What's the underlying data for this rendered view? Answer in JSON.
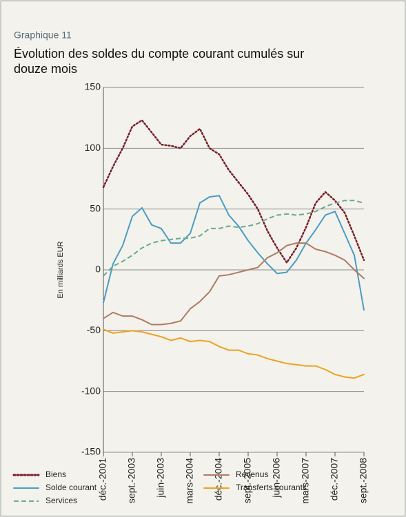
{
  "chart_data": {
    "type": "line",
    "kicker": "Graphique 11",
    "title": "Évolution des soldes du compte courant cumulés sur douze mois",
    "y_label": "En milliards EUR",
    "categories": [
      "déc.-2001",
      null,
      null,
      "sept.-2003",
      null,
      null,
      "juin-2003",
      null,
      null,
      "mars-2004",
      null,
      null,
      "déc.-2004",
      null,
      null,
      "sept.-2005",
      null,
      null,
      "juin-2006",
      null,
      null,
      "mars-2007",
      null,
      null,
      "déc.-2007",
      null,
      null,
      "sept.-2008"
    ],
    "series": [
      {
        "name": "Biens",
        "color": "#7b1e2a",
        "dash": "dotted",
        "values": [
          68,
          85,
          100,
          118,
          123,
          113,
          103,
          102,
          100,
          110,
          116,
          100,
          95,
          82,
          72,
          62,
          50,
          32,
          18,
          6,
          18,
          35,
          55,
          64,
          57,
          47,
          28,
          8
        ]
      },
      {
        "name": "Solde courant",
        "color": "#4a9cc4",
        "dash": "solid",
        "values": [
          -27,
          5,
          20,
          44,
          51,
          37,
          34,
          22,
          22,
          30,
          55,
          60,
          61,
          45,
          36,
          24,
          14,
          5,
          -3,
          -2,
          8,
          22,
          33,
          45,
          48,
          30,
          12,
          -33
        ]
      },
      {
        "name": "Services",
        "color": "#6aaa88",
        "dash": "dashed",
        "values": [
          -5,
          3,
          7,
          12,
          18,
          22,
          24,
          25,
          26,
          26,
          28,
          34,
          34,
          36,
          35,
          36,
          38,
          42,
          45,
          46,
          45,
          46,
          48,
          52,
          55,
          57,
          57,
          55
        ]
      },
      {
        "name": "Revenus",
        "color": "#b07a64",
        "dash": "solid",
        "values": [
          -40,
          -35,
          -38,
          -38,
          -41,
          -45,
          -45,
          -44,
          -42,
          -32,
          -26,
          -18,
          -5,
          -4,
          -2,
          0,
          2,
          10,
          14,
          20,
          22,
          22,
          17,
          15,
          12,
          8,
          0,
          -7
        ]
      },
      {
        "name": "Transferts courants",
        "color": "#f0a020",
        "dash": "solid",
        "values": [
          -49,
          -52,
          -51,
          -50,
          -51,
          -53,
          -55,
          -58,
          -56,
          -59,
          -58,
          -59,
          -63,
          -66,
          -66,
          -69,
          -70,
          -73,
          -75,
          -77,
          -78,
          -79,
          -79,
          -82,
          -86,
          -88,
          -89,
          -86
        ]
      }
    ],
    "ylim": [
      -150,
      150
    ],
    "yticks": [
      -150,
      -100,
      -50,
      0,
      50,
      100,
      150
    ],
    "grid": true
  }
}
